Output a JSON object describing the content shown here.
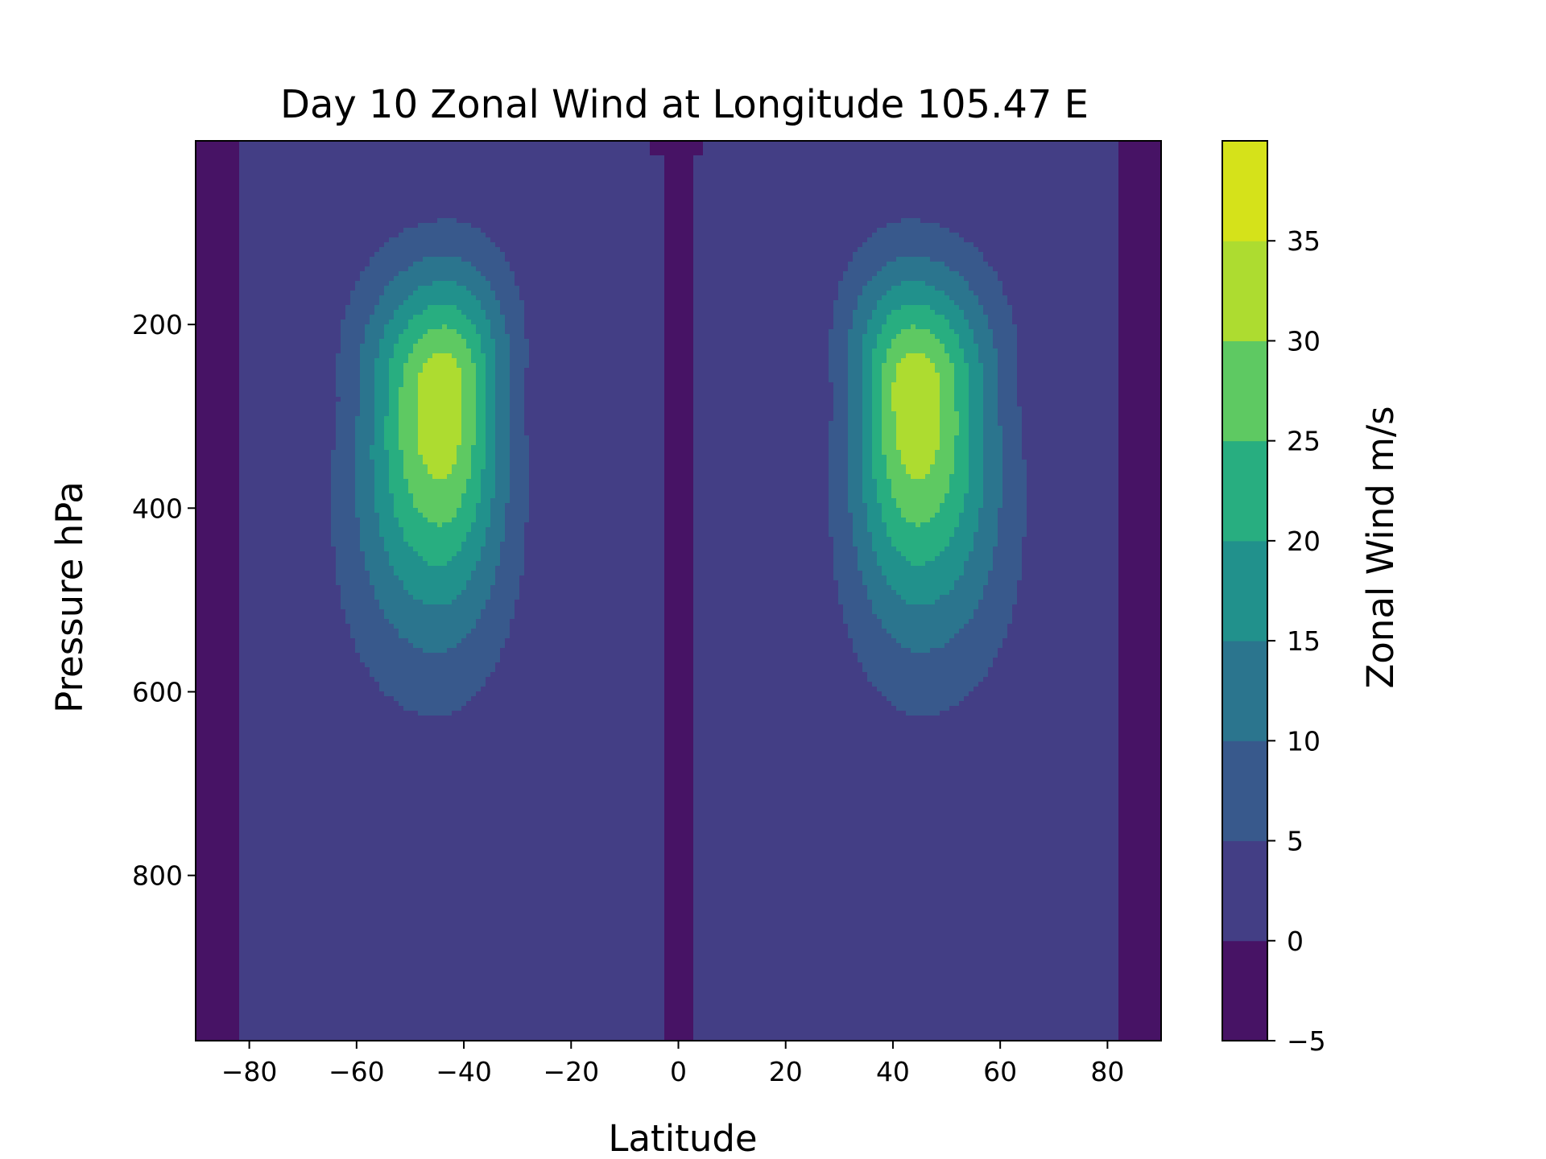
{
  "chart_data": {
    "type": "heatmap",
    "subtype": "filled-contour",
    "title": "Day 10 Zonal Wind at Longitude 105.47 E",
    "xlabel": "Latitude",
    "ylabel": "Pressure hPa",
    "colorbar_label": "Zonal Wind m/s",
    "xlim": [
      -90,
      90
    ],
    "ylim": [
      980,
      0
    ],
    "x_ticks": [
      -80,
      -60,
      -40,
      -20,
      0,
      20,
      40,
      60,
      80
    ],
    "x_tick_labels": [
      "−80",
      "−60",
      "−40",
      "−20",
      "0",
      "20",
      "40",
      "60",
      "80"
    ],
    "y_ticks": [
      200,
      400,
      600,
      800
    ],
    "y_tick_labels": [
      "200",
      "400",
      "600",
      "800"
    ],
    "levels": [
      -5,
      0,
      5,
      10,
      15,
      20,
      25,
      30,
      35
    ],
    "level_labels": [
      "−5",
      "0",
      "5",
      "10",
      "15",
      "20",
      "25",
      "30",
      "35"
    ],
    "colors": [
      "#471365",
      "#433e85",
      "#38598c",
      "#2b758e",
      "#21918c",
      "#28ae80",
      "#5ec962",
      "#addc30",
      "#d5e21a"
    ],
    "colormap": "viridis",
    "grid": false,
    "jets": [
      {
        "name": "southern-jet",
        "lat": -44,
        "pressure": 270,
        "max_speed": 32
      },
      {
        "name": "northern-jet",
        "lat": 44,
        "pressure": 280,
        "max_speed": 32
      }
    ]
  }
}
